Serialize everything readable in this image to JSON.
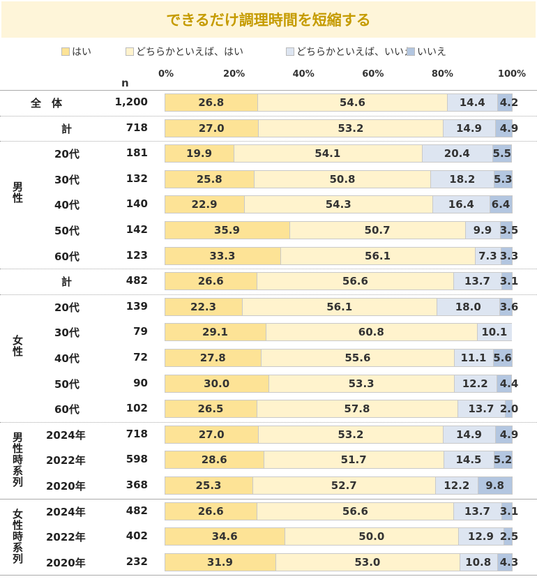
{
  "title": "できるだけ調理時間を短縮する",
  "chart_data": {
    "type": "bar",
    "orientation": "horizontal-stacked-100",
    "title": "できるだけ調理時間を短縮する",
    "n_label": "n",
    "xlim": [
      0,
      100
    ],
    "x_ticks": [
      "0%",
      "20%",
      "40%",
      "60%",
      "80%",
      "100%"
    ],
    "legend_position": "top",
    "series": [
      {
        "name": "はい",
        "color": "#fde396"
      },
      {
        "name": "どちらかといえば、はい",
        "color": "#fff3cd"
      },
      {
        "name": "どちらかといえば、いいえ",
        "color": "#dde5f1"
      },
      {
        "name": "いいえ",
        "color": "#b3c6e0"
      }
    ],
    "groups": [
      {
        "label": "全　体",
        "rows": [
          {
            "label": "",
            "n": "1,200",
            "values": [
              26.8,
              54.6,
              14.4,
              4.2
            ]
          }
        ]
      },
      {
        "label": "男性",
        "rows": [
          {
            "label": "計",
            "n": "718",
            "values": [
              27.0,
              53.2,
              14.9,
              4.9
            ]
          },
          {
            "label": "20代",
            "n": "181",
            "values": [
              19.9,
              54.1,
              20.4,
              5.5
            ]
          },
          {
            "label": "30代",
            "n": "132",
            "values": [
              25.8,
              50.8,
              18.2,
              5.3
            ]
          },
          {
            "label": "40代",
            "n": "140",
            "values": [
              22.9,
              54.3,
              16.4,
              6.4
            ]
          },
          {
            "label": "50代",
            "n": "142",
            "values": [
              35.9,
              50.7,
              9.9,
              3.5
            ]
          },
          {
            "label": "60代",
            "n": "123",
            "values": [
              33.3,
              56.1,
              7.3,
              3.3
            ]
          }
        ]
      },
      {
        "label": "女性",
        "rows": [
          {
            "label": "計",
            "n": "482",
            "values": [
              26.6,
              56.6,
              13.7,
              3.1
            ]
          },
          {
            "label": "20代",
            "n": "139",
            "values": [
              22.3,
              56.1,
              18.0,
              3.6
            ]
          },
          {
            "label": "30代",
            "n": "79",
            "values": [
              29.1,
              60.8,
              10.1,
              null
            ]
          },
          {
            "label": "40代",
            "n": "72",
            "values": [
              27.8,
              55.6,
              11.1,
              5.6
            ]
          },
          {
            "label": "50代",
            "n": "90",
            "values": [
              30.0,
              53.3,
              12.2,
              4.4
            ]
          },
          {
            "label": "60代",
            "n": "102",
            "values": [
              26.5,
              57.8,
              13.7,
              2.0
            ]
          }
        ]
      },
      {
        "label": "男性時系列",
        "rows": [
          {
            "label": "2024年",
            "n": "718",
            "values": [
              27.0,
              53.2,
              14.9,
              4.9
            ]
          },
          {
            "label": "2022年",
            "n": "598",
            "values": [
              28.6,
              51.7,
              14.5,
              5.2
            ]
          },
          {
            "label": "2020年",
            "n": "368",
            "values": [
              25.3,
              52.7,
              12.2,
              9.8
            ]
          }
        ]
      },
      {
        "label": "女性時系列",
        "rows": [
          {
            "label": "2024年",
            "n": "482",
            "values": [
              26.6,
              56.6,
              13.7,
              3.1
            ]
          },
          {
            "label": "2022年",
            "n": "402",
            "values": [
              34.6,
              50.0,
              12.9,
              2.5
            ]
          },
          {
            "label": "2020年",
            "n": "232",
            "values": [
              31.9,
              53.0,
              10.8,
              4.3
            ]
          }
        ]
      }
    ]
  }
}
